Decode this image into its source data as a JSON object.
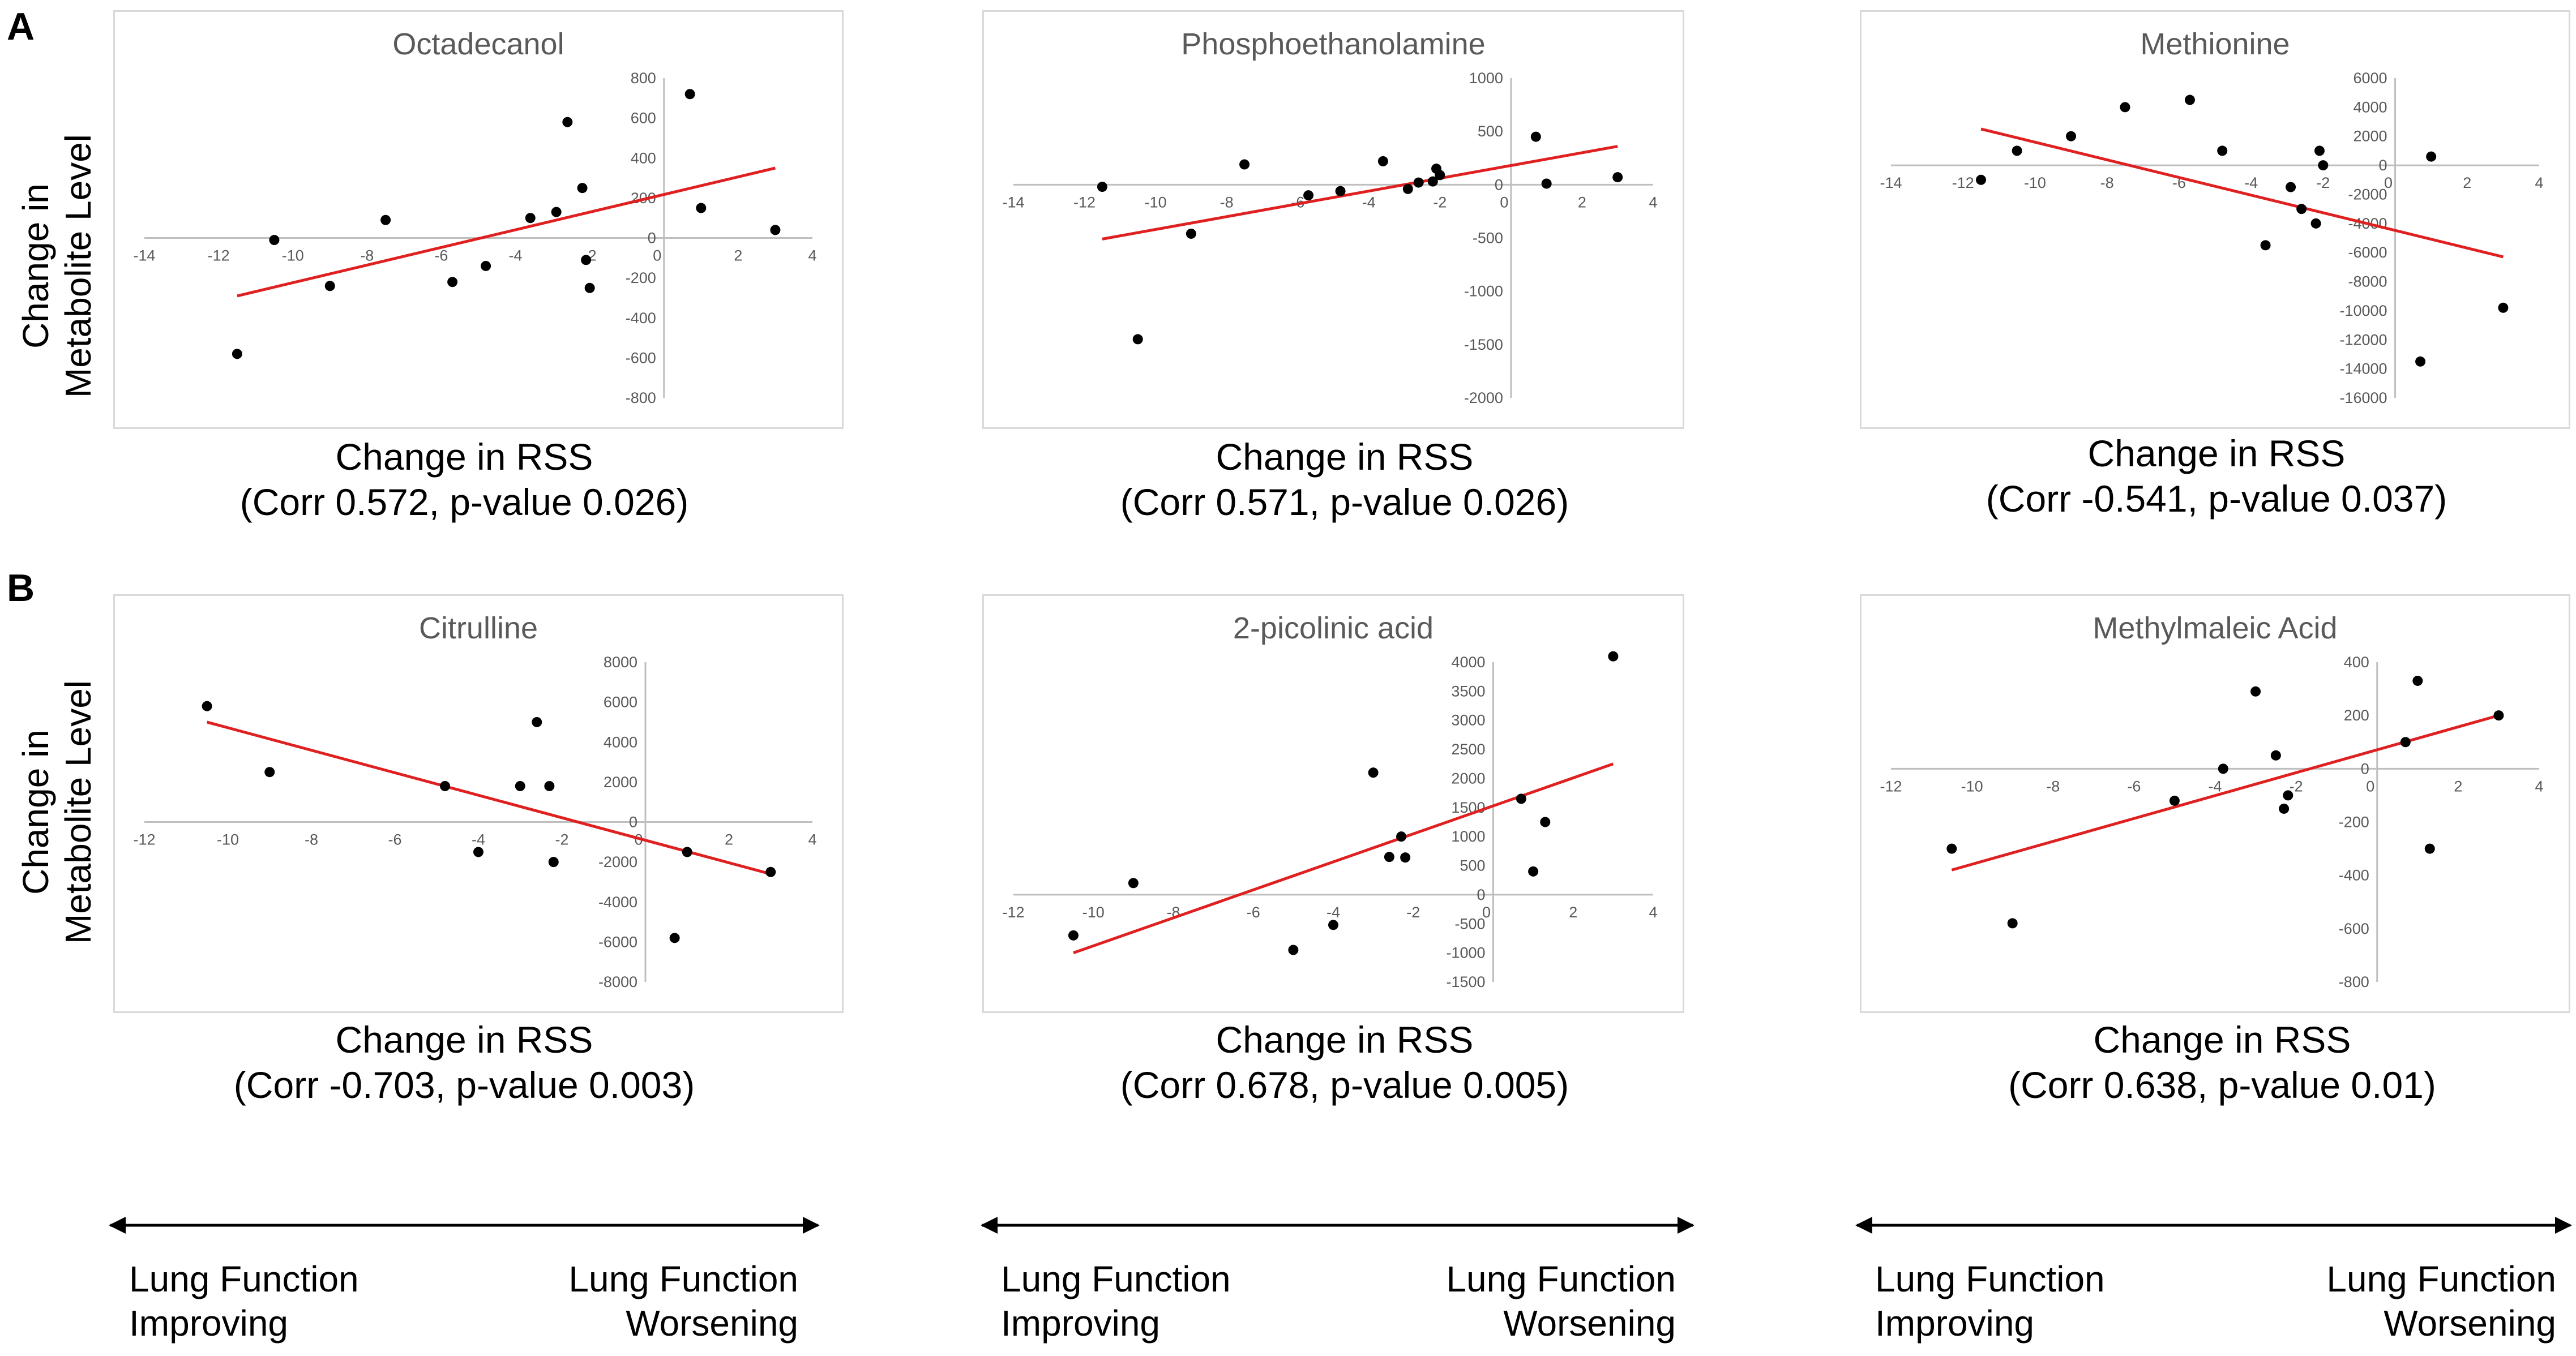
{
  "panels": {
    "a": "A",
    "b": "B"
  },
  "y_axis_label": {
    "line1": "Change in",
    "line2": "Metabolite Level"
  },
  "captions": [
    {
      "label": "Change in RSS",
      "stats": "(Corr 0.572, p-value 0.026)"
    },
    {
      "label": "Change in RSS",
      "stats": "(Corr 0.571, p-value 0.026)"
    },
    {
      "label": "Change in RSS",
      "stats": "(Corr -0.541, p-value 0.037)"
    },
    {
      "label": "Change in RSS",
      "stats": "(Corr -0.703, p-value 0.003)"
    },
    {
      "label": "Change in RSS",
      "stats": "(Corr 0.678, p-value 0.005)"
    },
    {
      "label": "Change in RSS",
      "stats": "(Corr 0.638, p-value 0.01)"
    }
  ],
  "lung_function": [
    {
      "left1": "Lung Function",
      "left2": "Improving",
      "right1": "Lung Function",
      "right2": "Worsening"
    },
    {
      "left1": "Lung Function",
      "left2": "Improving",
      "right1": "Lung Function",
      "right2": "Worsening"
    },
    {
      "left1": "Lung Function",
      "left2": "Improving",
      "right1": "Lung Function",
      "right2": "Worsening"
    }
  ],
  "colors": {
    "trendline": "#e02020",
    "points": "#000000",
    "axis": "#bfbfbf",
    "frame": "#d9d9d9"
  },
  "chart_data": [
    {
      "type": "scatter",
      "title": "Octadecanol",
      "xlabel": "Change in RSS",
      "ylabel": "Change in Metabolite Level",
      "xlim": [
        -14,
        4
      ],
      "ylim": [
        -800,
        800
      ],
      "xticks": [
        -14,
        -12,
        -10,
        -8,
        -6,
        -4,
        -2,
        0,
        2,
        4
      ],
      "yticks": [
        800,
        600,
        400,
        200,
        0,
        -200,
        -400,
        -600,
        -800
      ],
      "x": [
        -11.5,
        -10.5,
        -9,
        -7.5,
        -5.7,
        -4.8,
        -3.6,
        -2.9,
        -2.6,
        -2.2,
        -2.1,
        -2.0,
        0.7,
        1.0,
        3.0
      ],
      "y": [
        -580,
        -10,
        -240,
        90,
        -220,
        -140,
        100,
        130,
        580,
        250,
        -110,
        -250,
        720,
        150,
        40
      ],
      "trendline": {
        "x": [
          -11.5,
          3.0
        ],
        "y": [
          -290,
          350
        ]
      }
    },
    {
      "type": "scatter",
      "title": "Phosphoethanolamine",
      "xlabel": "Change in RSS",
      "ylabel": "Change in Metabolite Level",
      "xlim": [
        -14,
        4
      ],
      "ylim": [
        -2000,
        1000
      ],
      "xticks": [
        -14,
        -12,
        -10,
        -8,
        -6,
        -4,
        -2,
        0,
        2,
        4
      ],
      "yticks": [
        1000,
        500,
        0,
        -500,
        -1000,
        -1500,
        -2000
      ],
      "x": [
        -11.5,
        -10.5,
        -9.0,
        -7.5,
        -5.7,
        -4.8,
        -3.6,
        -2.9,
        -2.6,
        -2.2,
        -2.1,
        -2.0,
        0.7,
        1.0,
        3.0
      ],
      "y": [
        -20,
        -1450,
        -460,
        190,
        -100,
        -60,
        220,
        -40,
        20,
        30,
        150,
        90,
        450,
        10,
        70
      ],
      "trendline": {
        "x": [
          -11.5,
          3.0
        ],
        "y": [
          -510,
          360
        ]
      }
    },
    {
      "type": "scatter",
      "title": "Methionine",
      "xlabel": "Change in RSS",
      "ylabel": "Change in Metabolite Level",
      "xlim": [
        -14,
        4
      ],
      "ylim": [
        -16000,
        6000
      ],
      "xticks": [
        -14,
        -12,
        -10,
        -8,
        -6,
        -4,
        -2,
        0,
        2,
        4
      ],
      "yticks": [
        6000,
        4000,
        2000,
        0,
        -2000,
        -4000,
        -6000,
        -8000,
        -10000,
        -12000,
        -14000,
        -16000
      ],
      "x": [
        -11.5,
        -10.5,
        -9.0,
        -7.5,
        -5.7,
        -4.8,
        -3.6,
        -2.9,
        -2.6,
        -2.2,
        -2.1,
        -2.0,
        0.7,
        1.0,
        3.0
      ],
      "y": [
        -1000,
        1000,
        2000,
        4000,
        4500,
        1000,
        -5500,
        -1500,
        -3000,
        -4000,
        1000,
        0,
        -13500,
        600,
        -9800
      ],
      "trendline": {
        "x": [
          -11.5,
          3.0
        ],
        "y": [
          2500,
          -6300
        ]
      }
    },
    {
      "type": "scatter",
      "title": "Citrulline",
      "xlabel": "Change in RSS",
      "ylabel": "Change in Metabolite Level",
      "xlim": [
        -12,
        4
      ],
      "ylim": [
        -8000,
        8000
      ],
      "xticks": [
        -12,
        -10,
        -8,
        -6,
        -4,
        -2,
        0,
        2,
        4
      ],
      "yticks": [
        8000,
        6000,
        4000,
        2000,
        0,
        -2000,
        -4000,
        -6000,
        -8000
      ],
      "x": [
        -10.5,
        -9.0,
        -4.8,
        -4.0,
        -3.0,
        -2.6,
        -2.3,
        -2.2,
        0.7,
        1.0,
        3.0
      ],
      "y": [
        5800,
        2500,
        1800,
        -1500,
        1800,
        5000,
        1800,
        -2000,
        -5800,
        -1500,
        -2500
      ],
      "trendline": {
        "x": [
          -10.5,
          3.0
        ],
        "y": [
          5000,
          -2600
        ]
      }
    },
    {
      "type": "scatter",
      "title": "2-picolinic acid",
      "xlabel": "Change in RSS",
      "ylabel": "Change in Metabolite Level",
      "xlim": [
        -12,
        4
      ],
      "ylim": [
        -1500,
        4000
      ],
      "xticks": [
        -12,
        -10,
        -8,
        -6,
        -4,
        -2,
        0,
        2,
        4
      ],
      "yticks": [
        4000,
        3500,
        3000,
        2500,
        2000,
        1500,
        1000,
        500,
        0,
        -500,
        -1000,
        -1500
      ],
      "x": [
        -10.5,
        -9.0,
        -5.0,
        -4.0,
        -3.0,
        -2.6,
        -2.3,
        -2.2,
        0.7,
        1.0,
        1.3,
        3.0
      ],
      "y": [
        -700,
        200,
        -950,
        -520,
        2100,
        650,
        1000,
        640,
        1650,
        400,
        1250,
        4100
      ],
      "trendline": {
        "x": [
          -10.5,
          3.0
        ],
        "y": [
          -1000,
          2250
        ]
      }
    },
    {
      "type": "scatter",
      "title": "Methylmaleic Acid",
      "xlabel": "Change in RSS",
      "ylabel": "Change in Metabolite Level",
      "xlim": [
        -12,
        4
      ],
      "ylim": [
        -800,
        400
      ],
      "xticks": [
        -12,
        -10,
        -8,
        -6,
        -4,
        -2,
        0,
        2,
        4
      ],
      "yticks": [
        400,
        200,
        0,
        -200,
        -400,
        -600,
        -800
      ],
      "x": [
        -10.5,
        -9.0,
        -5.0,
        -3.8,
        -3.0,
        -2.5,
        -2.3,
        -2.2,
        0.7,
        1.0,
        1.3,
        3.0
      ],
      "y": [
        -300,
        -580,
        -120,
        0,
        290,
        50,
        -150,
        -100,
        100,
        330,
        -300,
        200
      ],
      "trendline": {
        "x": [
          -10.5,
          3.0
        ],
        "y": [
          -380,
          200
        ]
      }
    }
  ]
}
